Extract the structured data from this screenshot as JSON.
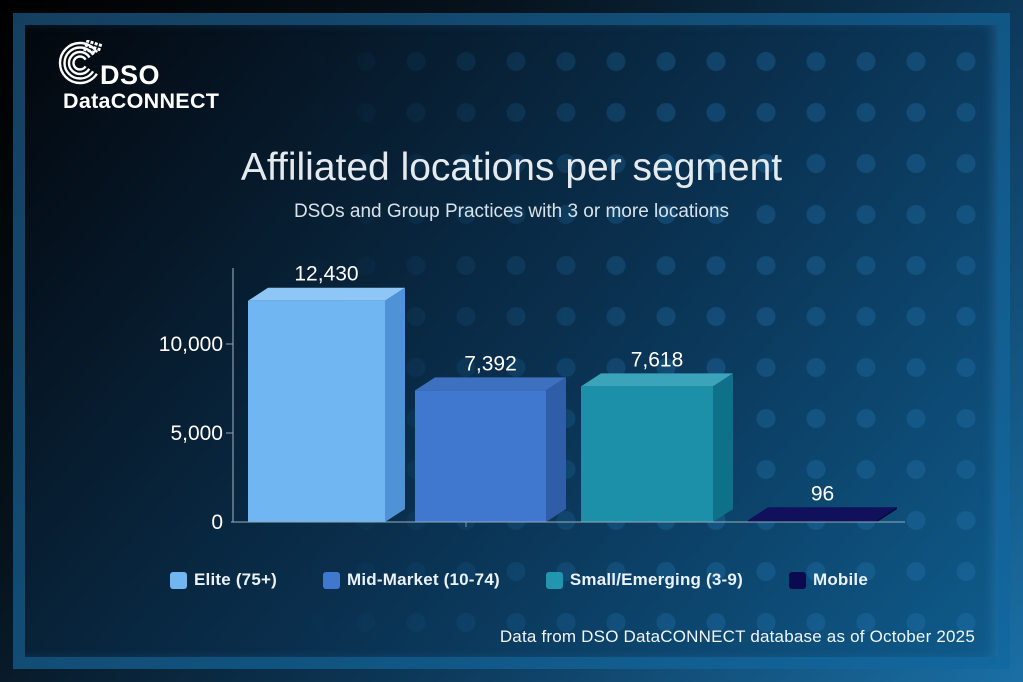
{
  "logo": {
    "line1": "DSO",
    "line2": "DataCONNECT",
    "icon": "dso-rings-icon"
  },
  "footer": {
    "text": "Data from DSO DataCONNECT database as of October 2025"
  },
  "colors": {
    "background_dark": "#03070d",
    "background_light": "#0f5c8c",
    "frame_border": "#11527e",
    "axis": "#93a7b8",
    "text": "#ffffff",
    "title_text": "#e4eaee"
  },
  "chart_data": {
    "type": "bar",
    "style": "3d",
    "title": "Affiliated locations per segment",
    "subtitle": "DSOs and Group Practices with 3 or more locations",
    "categories": [
      "Elite (75+)",
      "Mid-Market (10-74)",
      "Small/Emerging (3-9)",
      "Mobile"
    ],
    "values": [
      12430,
      7392,
      7618,
      96
    ],
    "value_labels": [
      "12,430",
      "7,392",
      "7,618",
      "96"
    ],
    "yticks": [
      0,
      5000,
      10000
    ],
    "ytick_labels": [
      "0",
      "5,000",
      "10,000"
    ],
    "ylim": [
      0,
      13000
    ],
    "xlabel": "",
    "ylabel": "",
    "grid": false,
    "legend_position": "bottom",
    "legend": [
      {
        "label": "Elite (75+)",
        "color": "#6fb6f2"
      },
      {
        "label": "Mid-Market (10-74)",
        "color": "#4078d0"
      },
      {
        "label": "Small/Emerging (3-9)",
        "color": "#2196ae"
      },
      {
        "label": "Mobile",
        "color": "#0a0a50"
      }
    ],
    "bar_colors": [
      {
        "front": "#6fb6f2",
        "top": "#8ec7f6",
        "side": "#4f93d6"
      },
      {
        "front": "#4078d0",
        "top": "#3d70be",
        "side": "#305da8"
      },
      {
        "front": "#1d90a9",
        "top": "#3ba4ba",
        "side": "#0f7189"
      },
      {
        "front": "#0a0a4e",
        "top": "#10105c",
        "side": "#060638"
      }
    ]
  }
}
